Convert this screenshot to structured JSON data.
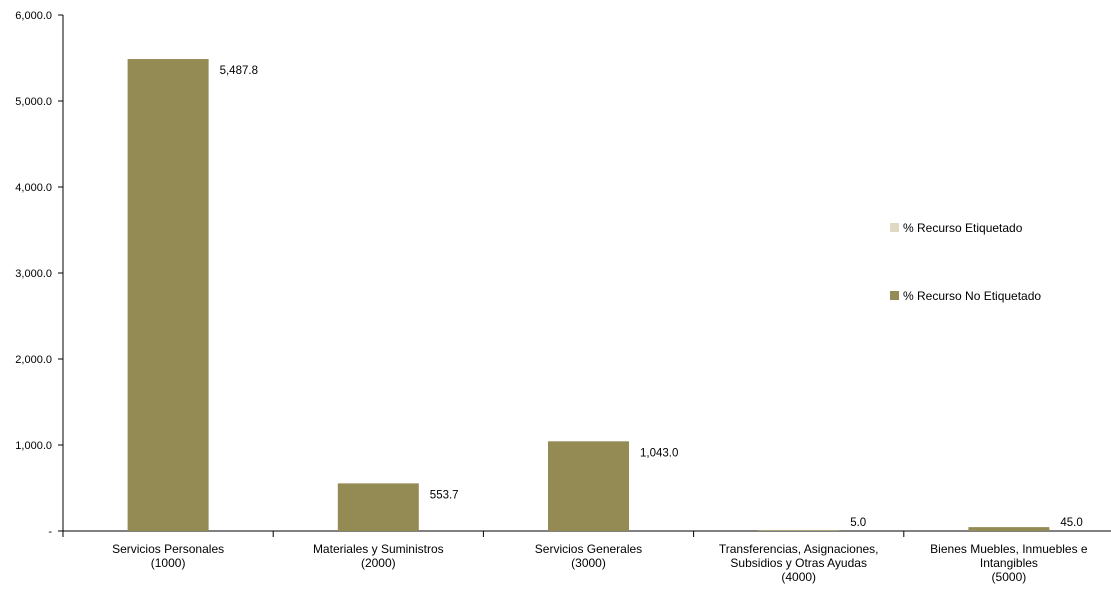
{
  "chart_data": {
    "type": "bar",
    "categories": [
      [
        "Servicios Personales",
        "(1000)"
      ],
      [
        "Materiales y Suministros",
        "(2000)"
      ],
      [
        "Servicios Generales",
        "(3000)"
      ],
      [
        "Transferencias, Asignaciones,",
        "Subsidios y Otras Ayudas",
        "(4000)"
      ],
      [
        "Bienes Muebles, Inmuebles e",
        "Intangibles",
        "(5000)"
      ]
    ],
    "series": [
      {
        "name": "% Recurso Etiquetado",
        "color": "#ddd9c3",
        "values": [
          0,
          0,
          0,
          0,
          0
        ]
      },
      {
        "name": "% Recurso No Etiquetado",
        "color": "#948a54",
        "values": [
          5487.8,
          553.7,
          1043.0,
          5.0,
          45.0
        ]
      }
    ],
    "data_labels": [
      "5,487.8",
      "553.7",
      "1,043.0",
      "5.0",
      "45.0"
    ],
    "y_ticks": [
      {
        "value": 0,
        "label": "-"
      },
      {
        "value": 1000,
        "label": "1,000.0"
      },
      {
        "value": 2000,
        "label": "2,000.0"
      },
      {
        "value": 3000,
        "label": "3,000.0"
      },
      {
        "value": 4000,
        "label": "4,000.0"
      },
      {
        "value": 5000,
        "label": "5,000.0"
      },
      {
        "value": 6000,
        "label": "6,000.0"
      }
    ],
    "ylim": [
      0,
      6000
    ],
    "grid": false,
    "legend_position": "right"
  }
}
